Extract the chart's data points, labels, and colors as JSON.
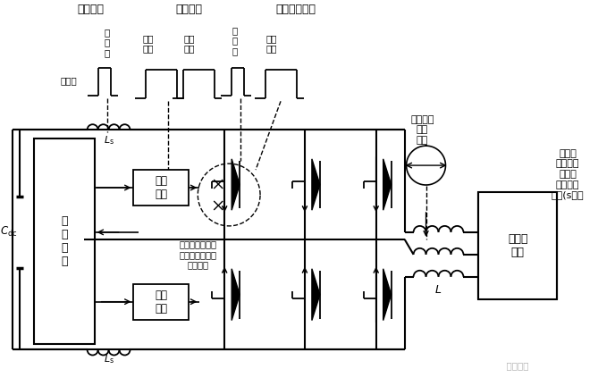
{
  "bg_color": "#ffffff",
  "lc": "#000000",
  "title": "控制脉冲   驱动脉冲    电磁能量脉冲",
  "label_nanosec": "纳秒级",
  "label_us1": "微\n秒\n级",
  "label_100ns": "百纳\n秒级",
  "label_100us1": "百微\n秒级",
  "label_us2": "微\n秒\n级",
  "label_100us2": "百微\n秒级",
  "label_load_current": "负载电流\n十毫\n秒级",
  "label_grid": "电网、\n电机等外\n接电源\n或负载的\n波动(s极）",
  "label_drive1": "驱动\n电路",
  "label_drive2": "驱动\n电路",
  "label_control": "控\n制\n电\n路",
  "label_Cdc": "$C_{\\rm dc}$",
  "label_Ls1": "$L_{\\rm s}$",
  "label_Ls2": "$L_{\\rm s}$",
  "label_L": "$L$",
  "label_power_load": "电源或\n负载",
  "label_sample": "负载电流、直流\n母线电压采样、\n采样周期",
  "watermark": "  电气技术"
}
